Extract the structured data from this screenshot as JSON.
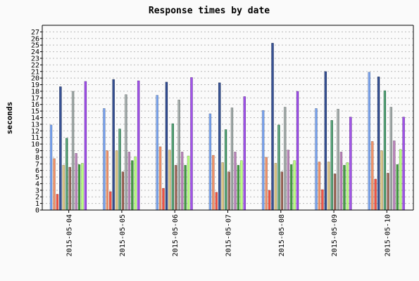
{
  "chart_data": {
    "type": "bar",
    "title": "Response times by date",
    "xlabel": "",
    "ylabel": "seconds",
    "ylim": [
      0,
      28
    ],
    "yticks": [
      0,
      1,
      2,
      3,
      4,
      5,
      6,
      7,
      8,
      9,
      10,
      11,
      12,
      13,
      14,
      15,
      16,
      17,
      18,
      19,
      20,
      21,
      22,
      23,
      24,
      25,
      26,
      27
    ],
    "grid": true,
    "legend": "none",
    "categories": [
      "2015-05-04",
      "2015-05-05",
      "2015-05-06",
      "2015-05-07",
      "2015-05-08",
      "2015-05-09",
      "2015-05-10"
    ],
    "series": [
      {
        "color": "#6495ed",
        "values": [
          12.9,
          15.4,
          17.4,
          14.6,
          15.1,
          15.4,
          20.9
        ]
      },
      {
        "color": "#f08050",
        "values": [
          7.8,
          9.0,
          9.6,
          8.3,
          8.0,
          7.3,
          10.4
        ]
      },
      {
        "color": "#ee3322",
        "values": [
          2.4,
          2.8,
          3.3,
          2.7,
          3.0,
          3.1,
          4.7
        ]
      },
      {
        "color": "#0a2a7a",
        "values": [
          18.7,
          19.8,
          19.4,
          19.3,
          25.3,
          21.0,
          20.2
        ]
      },
      {
        "color": "#d4b86a",
        "values": [
          6.8,
          9.0,
          9.1,
          7.2,
          7.1,
          7.3,
          9.0
        ]
      },
      {
        "color": "#2e8b57",
        "values": [
          10.9,
          12.3,
          13.1,
          12.2,
          12.9,
          13.6,
          18.1
        ]
      },
      {
        "color": "#8b4a3a",
        "values": [
          6.5,
          5.8,
          6.8,
          5.8,
          5.8,
          5.5,
          5.6
        ]
      },
      {
        "color": "#8f9a98",
        "values": [
          18.0,
          17.5,
          16.7,
          15.5,
          15.6,
          15.3,
          15.6
        ]
      },
      {
        "color": "#b070b0",
        "values": [
          8.6,
          8.8,
          8.8,
          8.8,
          9.1,
          8.8,
          10.5
        ]
      },
      {
        "color": "#228b22",
        "values": [
          6.9,
          7.5,
          6.8,
          6.8,
          6.9,
          6.8,
          6.9
        ]
      },
      {
        "color": "#aaff66",
        "values": [
          7.1,
          8.1,
          8.2,
          7.5,
          7.5,
          7.2,
          9.2
        ]
      },
      {
        "color": "#8a2be2",
        "values": [
          19.5,
          19.6,
          20.1,
          17.2,
          18.0,
          14.1,
          14.1
        ]
      }
    ]
  }
}
